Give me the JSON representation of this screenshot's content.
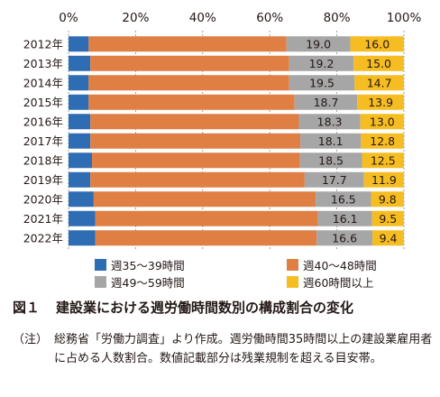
{
  "chart_data": {
    "type": "bar",
    "orientation": "horizontal",
    "stacked": true,
    "categories": [
      "2012年",
      "2013年",
      "2014年",
      "2015年",
      "2016年",
      "2017年",
      "2018年",
      "2019年",
      "2020年",
      "2021年",
      "2022年"
    ],
    "xlim": [
      0,
      100
    ],
    "xticks": [
      "0%",
      "20%",
      "40%",
      "60%",
      "80%",
      "100%"
    ],
    "grid": true,
    "legend_position": "bottom",
    "series": [
      {
        "name": "週35〜39時間",
        "color": "#2e6db4",
        "values": [
          6.0,
          6.5,
          6.0,
          6.0,
          6.5,
          6.5,
          7.0,
          6.5,
          7.5,
          8.0,
          8.0
        ],
        "show_labels": false
      },
      {
        "name": "週40〜48時間",
        "color": "#e07f44",
        "values": [
          59.0,
          59.3,
          59.8,
          61.4,
          62.2,
          62.6,
          62.0,
          63.9,
          66.2,
          66.4,
          66.0
        ],
        "show_labels": false
      },
      {
        "name": "週49〜59時間",
        "color": "#a6a6a6",
        "values": [
          19.0,
          19.2,
          19.5,
          18.7,
          18.3,
          18.1,
          18.5,
          17.7,
          16.5,
          16.1,
          16.6
        ],
        "show_labels": true
      },
      {
        "name": "週60時間以上",
        "color": "#f6bd22",
        "values": [
          16.0,
          15.0,
          14.7,
          13.9,
          13.0,
          12.8,
          12.5,
          11.9,
          9.8,
          9.5,
          9.4
        ],
        "show_labels": true
      }
    ]
  },
  "caption": {
    "fig_label": "図１",
    "title": "建設業における週労働時間数別の構成割合の変化"
  },
  "note": {
    "label": "（注）",
    "text": "総務省「労働力調査」より作成。週労働時間35時間以上の建設業雇用者に占める人数割合。数値記載部分は残業規制を超える目安帯。"
  }
}
